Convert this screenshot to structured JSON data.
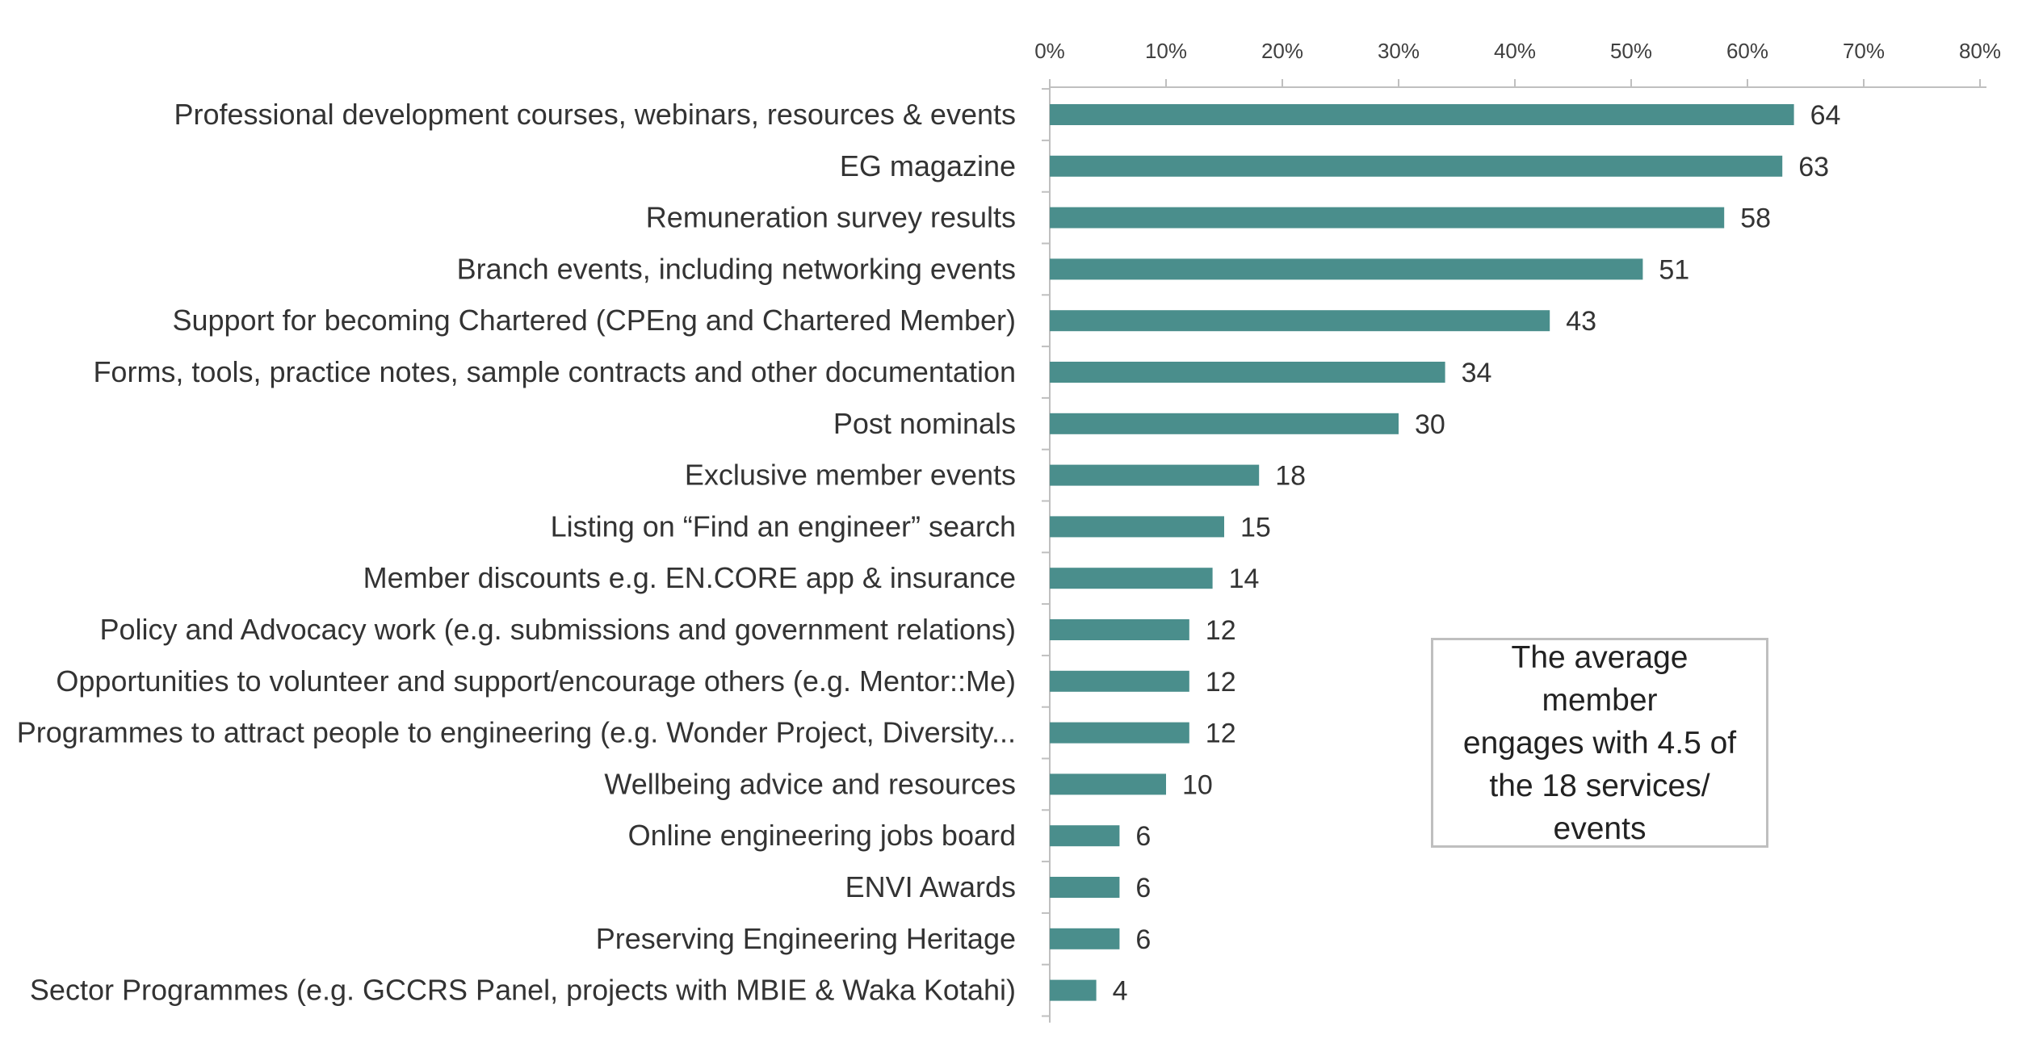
{
  "chart_data": {
    "type": "bar",
    "orientation": "horizontal",
    "categories": [
      "Professional development courses, webinars, resources & events",
      "EG magazine",
      "Remuneration survey results",
      "Branch events, including networking events",
      "Support for becoming Chartered (CPEng and Chartered Member)",
      "Forms, tools, practice notes, sample contracts and other documentation",
      "Post nominals",
      "Exclusive member events",
      "Listing on “Find an engineer” search",
      "Member discounts  e.g. EN.CORE app & insurance",
      "Policy and Advocacy work  (e.g. submissions and government relations)",
      "Opportunities to volunteer and support/encourage others  (e.g. Mentor::Me)",
      "Programmes to attract people to engineering  (e.g. Wonder Project, Diversity...",
      "Wellbeing advice and resources",
      "Online engineering jobs board",
      "ENVI Awards",
      "Preserving Engineering Heritage",
      "Sector Programmes  (e.g. GCCRS Panel, projects with MBIE & Waka Kotahi)"
    ],
    "values": [
      64,
      63,
      58,
      51,
      43,
      34,
      30,
      18,
      15,
      14,
      12,
      12,
      12,
      10,
      6,
      6,
      6,
      4
    ],
    "data_labels": [
      "64",
      "63",
      "58",
      "51",
      "43",
      "34",
      "30",
      "18",
      "15",
      "14",
      "12",
      "12",
      "12",
      "10",
      "6",
      "6",
      "6",
      "4"
    ],
    "xlim": [
      0,
      80
    ],
    "xticks": [
      0,
      10,
      20,
      30,
      40,
      50,
      60,
      70,
      80
    ],
    "xtick_labels": [
      "0%",
      "10%",
      "20%",
      "30%",
      "40%",
      "50%",
      "60%",
      "70%",
      "80%"
    ],
    "axis_position": "top",
    "grid": false,
    "bar_color": "#4a8e8c",
    "title": "",
    "xlabel": "",
    "ylabel": ""
  },
  "callout": {
    "lines": [
      "The average member",
      "engages with 4.5 of",
      "the 18 services/",
      "events"
    ]
  }
}
